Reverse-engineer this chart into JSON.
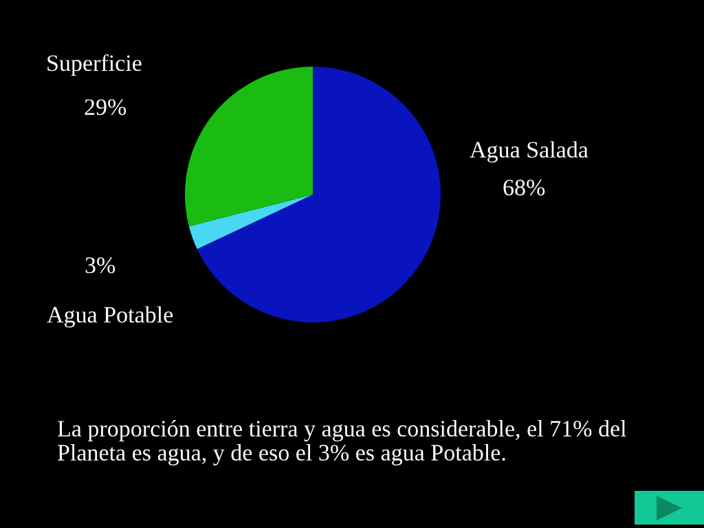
{
  "chart_data": {
    "type": "pie",
    "categories": [
      "Agua Salada",
      "Agua Potable",
      "Superficie"
    ],
    "values": [
      68,
      3,
      29
    ],
    "colors": [
      "#0a14be",
      "#48d8f2",
      "#1abc12"
    ],
    "value_labels": [
      "68%",
      "3%",
      "29%"
    ],
    "annotations": [
      "La proporción entre tierra y agua es considerable, el 71% del\nPlaneta es agua, y de eso el 3% es agua Potable."
    ]
  }
}
